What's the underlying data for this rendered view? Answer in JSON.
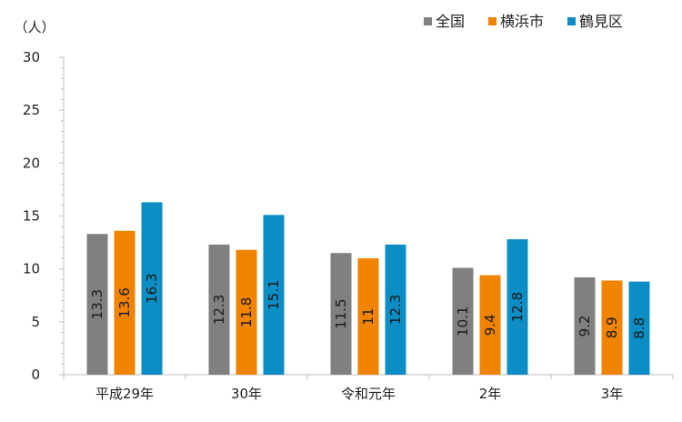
{
  "chart_data": {
    "type": "bar",
    "title": "",
    "ylabel": "（人）",
    "xlabel": "",
    "ylim": [
      0,
      30
    ],
    "yticks": [
      0,
      5,
      10,
      15,
      20,
      25,
      30
    ],
    "categories": [
      "平成29年",
      "30年",
      "令和元年",
      "2年",
      "3年"
    ],
    "series": [
      {
        "name": "全国",
        "color": "#808080",
        "values": [
          13.3,
          12.3,
          11.5,
          10.1,
          9.2
        ]
      },
      {
        "name": "横浜市",
        "color": "#F08300",
        "values": [
          13.6,
          11.8,
          11,
          9.4,
          8.9
        ]
      },
      {
        "name": "鶴見区",
        "color": "#0C8DC3",
        "values": [
          16.3,
          15.1,
          12.3,
          12.8,
          8.8
        ]
      }
    ],
    "data_labels": {
      "show": true,
      "orientation": "vertical",
      "text": [
        [
          "13.3",
          "12.3",
          "11.5",
          "10.1",
          "9.2"
        ],
        [
          "13.6",
          "11.8",
          "11",
          "9.4",
          "8.9"
        ],
        [
          "16.3",
          "15.1",
          "12.3",
          "12.8",
          "8.8"
        ]
      ]
    },
    "grid": false,
    "legend_position": "top-right"
  }
}
